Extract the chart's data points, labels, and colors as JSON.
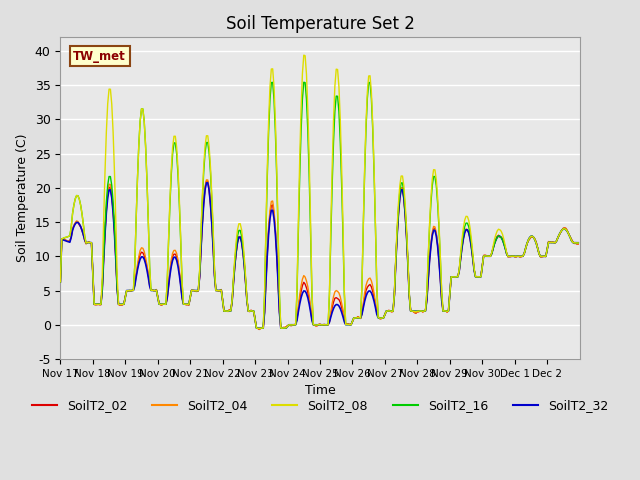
{
  "title": "Soil Temperature Set 2",
  "xlabel": "Time",
  "ylabel": "Soil Temperature (C)",
  "ylim": [
    -5,
    42
  ],
  "xlim": [
    0,
    384
  ],
  "annotation_text": "TW_met",
  "annotation_color": "#8b0000",
  "annotation_bg": "#ffffcc",
  "annotation_border": "#8b4513",
  "series": {
    "SoilT2_02": {
      "color": "#dd0000",
      "lw": 1.0
    },
    "SoilT2_04": {
      "color": "#ff8800",
      "lw": 1.0
    },
    "SoilT2_08": {
      "color": "#dddd00",
      "lw": 1.0
    },
    "SoilT2_16": {
      "color": "#00cc00",
      "lw": 1.0
    },
    "SoilT2_32": {
      "color": "#0000cc",
      "lw": 1.2
    }
  },
  "xtick_labels": [
    "Nov 17",
    "Nov 18",
    "Nov 19",
    "Nov 20",
    "Nov 21",
    "Nov 22",
    "Nov 23",
    "Nov 24",
    "Nov 25",
    "Nov 26",
    "Nov 27",
    "Nov 28",
    "Nov 29",
    "Nov 30",
    "Dec 1",
    "Dec 2"
  ],
  "xtick_positions": [
    0,
    24,
    48,
    72,
    96,
    120,
    144,
    168,
    192,
    216,
    240,
    264,
    288,
    312,
    336,
    360
  ],
  "ytick_labels": [
    "-5",
    "0",
    "5",
    "10",
    "15",
    "20",
    "25",
    "30",
    "35",
    "40"
  ],
  "ytick_positions": [
    -5,
    0,
    5,
    10,
    15,
    20,
    25,
    30,
    35,
    40
  ]
}
